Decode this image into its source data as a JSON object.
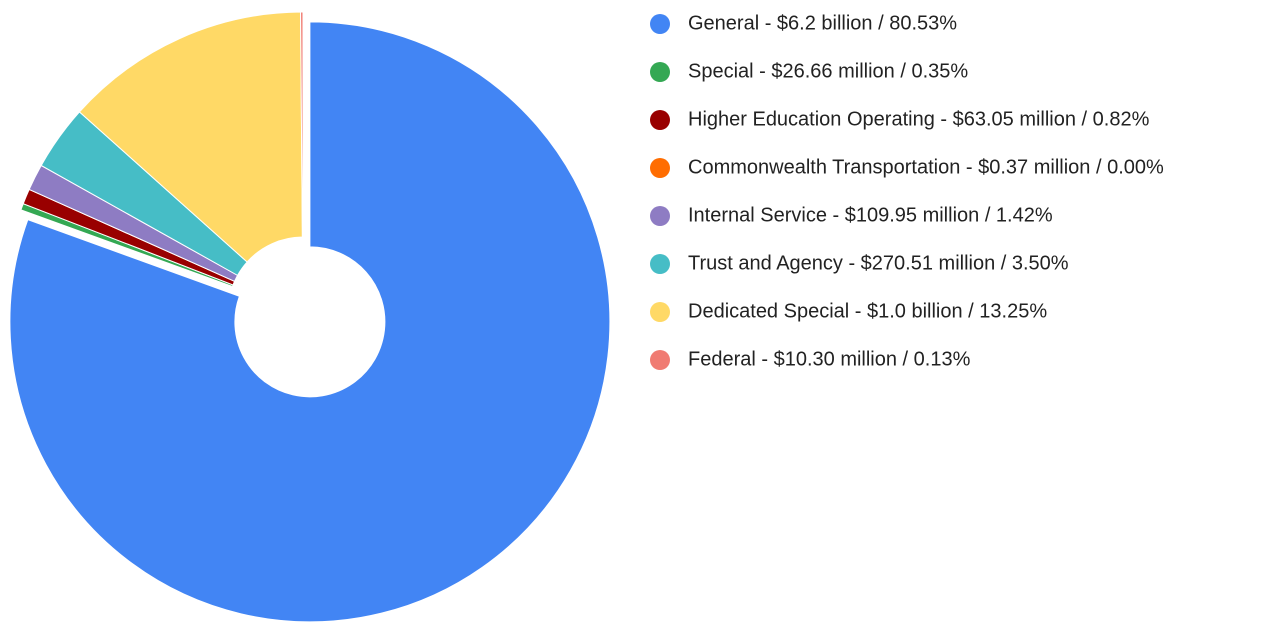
{
  "chart_data": {
    "type": "pie",
    "categories": [
      "General - $6.2 billion / 80.53%",
      "Special - $26.66 million / 0.35%",
      "Higher Education Operating - $63.05 million / 0.82%",
      "Commonwealth Transportation - $0.37 million / 0.00%",
      "Internal Service - $109.95 million / 1.42%",
      "Trust and Agency - $270.51 million / 3.50%",
      "Dedicated Special - $1.0 billion / 13.25%",
      "Federal - $10.30 million / 0.13%"
    ],
    "values": [
      80.53,
      0.35,
      0.82,
      0.0,
      1.42,
      3.5,
      13.25,
      0.13
    ],
    "colors": [
      "#4285f4",
      "#34a853",
      "#990000",
      "#ff6d01",
      "#8e7cc3",
      "#46bdc6",
      "#ffd966",
      "#f07b72"
    ],
    "legend": "right"
  }
}
